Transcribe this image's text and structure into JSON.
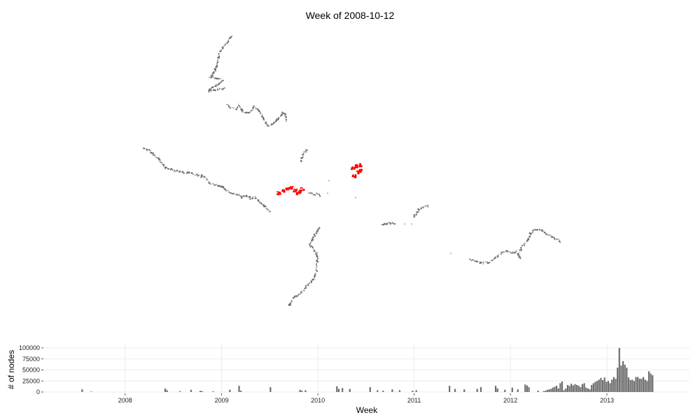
{
  "title": "Week of 2008-10-12",
  "colors": {
    "trace": "#6e6e6e",
    "trace_faint": "#a8a8a8",
    "highlight": "#ff0000",
    "bar": "#6e6e6e",
    "grid": "#ebebeb"
  },
  "chart_data": [
    {
      "type": "scatter",
      "description_of_layer": "map of node traces",
      "xlabel": "",
      "ylabel": "",
      "grid": false,
      "highlight_week": "2008-10-12"
    },
    {
      "type": "bar",
      "xlabel": "Week",
      "ylabel": "# of nodes",
      "grid": true,
      "x_tick_labels": [
        "2008",
        "2009",
        "2010",
        "2011",
        "2012",
        "2013"
      ],
      "y_tick_labels": [
        "0",
        "25000",
        "50000",
        "75000",
        "100000"
      ],
      "y_ticks": [
        0,
        25000,
        50000,
        75000,
        100000
      ],
      "ylim": [
        0,
        100000
      ],
      "xlim": [
        "2007-02-25",
        "2013-11-10"
      ],
      "highlight_week": "2008-10-12",
      "series": [
        {
          "weeks": [
            "2007-07-22",
            "2007-08-26",
            "2008-06-01",
            "2008-06-08",
            "2008-07-27",
            "2008-09-07",
            "2008-10-12",
            "2008-10-19",
            "2008-11-30",
            "2009-02-01",
            "2009-03-08",
            "2009-03-15",
            "2009-07-05",
            "2009-10-25",
            "2009-11-01",
            "2009-11-15",
            "2010-03-14",
            "2010-03-21",
            "2010-04-04",
            "2010-05-02",
            "2010-07-18",
            "2010-08-15",
            "2010-09-05",
            "2010-10-10",
            "2010-11-07",
            "2010-12-26",
            "2011-01-09",
            "2011-05-15",
            "2011-06-05",
            "2011-07-10",
            "2011-08-28",
            "2011-09-11",
            "2011-11-06",
            "2011-11-13",
            "2011-12-11",
            "2012-01-08",
            "2012-01-29",
            "2012-02-26",
            "2012-03-04",
            "2012-03-11",
            "2012-04-15",
            "2012-05-06",
            "2012-05-13",
            "2012-05-20",
            "2012-05-27",
            "2012-06-03",
            "2012-06-10",
            "2012-06-17",
            "2012-06-24",
            "2012-07-01",
            "2012-07-08",
            "2012-07-15",
            "2012-07-22",
            "2012-07-29",
            "2012-08-05",
            "2012-08-12",
            "2012-08-19",
            "2012-08-26",
            "2012-09-02",
            "2012-09-09",
            "2012-09-16",
            "2012-09-23",
            "2012-09-30",
            "2012-10-07",
            "2012-10-14",
            "2012-10-21",
            "2012-10-28",
            "2012-11-04",
            "2012-11-11",
            "2012-11-18",
            "2012-11-25",
            "2012-12-02",
            "2012-12-09",
            "2012-12-16",
            "2012-12-23",
            "2012-12-30",
            "2013-01-06",
            "2013-01-13",
            "2013-01-20",
            "2013-01-27",
            "2013-02-03",
            "2013-02-10",
            "2013-02-17",
            "2013-02-24",
            "2013-03-03",
            "2013-03-10",
            "2013-03-17",
            "2013-03-24",
            "2013-03-31",
            "2013-04-07",
            "2013-04-14",
            "2013-04-21",
            "2013-04-28",
            "2013-05-05",
            "2013-05-12",
            "2013-05-19",
            "2013-05-26",
            "2013-06-02",
            "2013-06-09",
            "2013-06-16",
            "2013-06-23"
          ],
          "values": [
            6000,
            1000,
            8000,
            4000,
            2000,
            5000,
            2500,
            2000,
            1500,
            5000,
            14000,
            3000,
            11000,
            5000,
            3000,
            4000,
            13000,
            7000,
            9000,
            7000,
            11000,
            4000,
            3000,
            6000,
            4000,
            3000,
            4000,
            14000,
            7000,
            6000,
            7000,
            11000,
            14000,
            8000,
            5000,
            10000,
            6000,
            17000,
            15000,
            11000,
            3000,
            2000,
            3000,
            5000,
            6000,
            7000,
            10000,
            12000,
            14000,
            8000,
            20000,
            24000,
            4000,
            8000,
            16000,
            14000,
            19000,
            15000,
            18000,
            16000,
            14000,
            11000,
            18000,
            20000,
            10000,
            8000,
            6000,
            16000,
            20000,
            23000,
            25000,
            28000,
            32000,
            27000,
            33000,
            23000,
            25000,
            20000,
            28000,
            34000,
            30000,
            55000,
            100000,
            60000,
            70000,
            62000,
            55000,
            33000,
            27000,
            28000,
            25000,
            34000,
            34000,
            30000,
            30000,
            34000,
            28000,
            25000,
            47000,
            42000,
            38000
          ]
        }
      ]
    }
  ]
}
